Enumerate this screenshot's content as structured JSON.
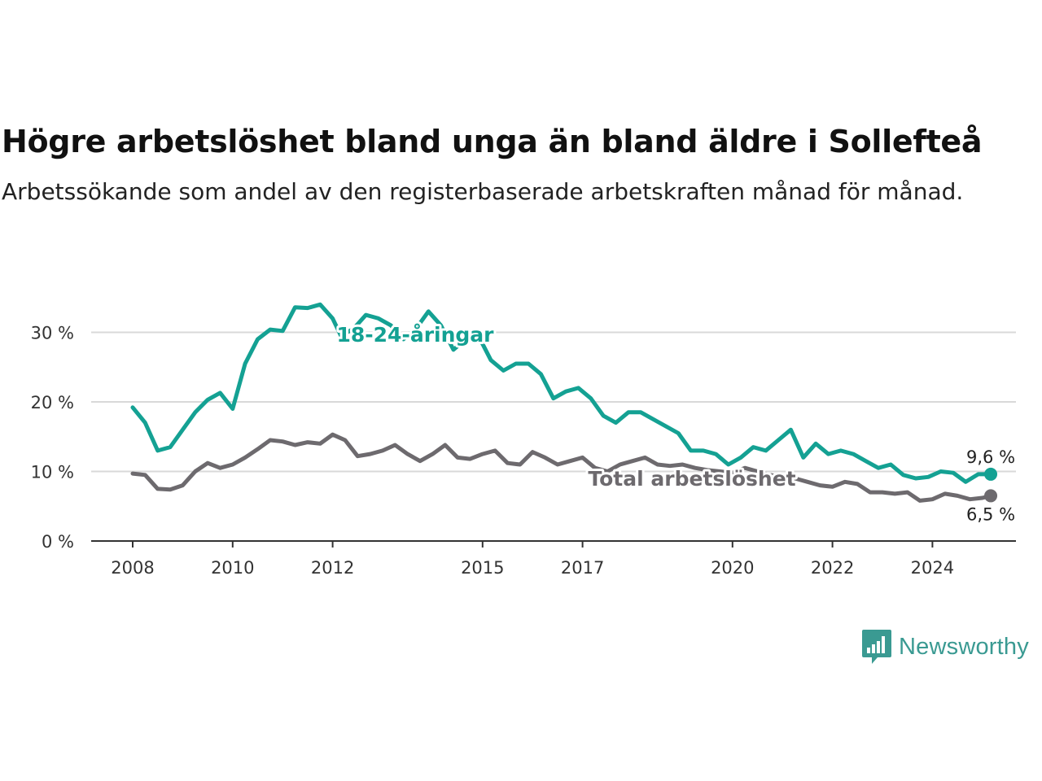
{
  "title": "Högre arbetslöshet bland unga än bland äldre i Sollefteå",
  "subtitle": "Arbetssökande som andel av den registerbaserade arbetskraften månad för månad.",
  "brand": {
    "name": "Newsworthy",
    "icon": "bar-chart-speech-bubble-icon",
    "color": "#3a9a92"
  },
  "chart_data": {
    "type": "line",
    "title": "Högre arbetslöshet bland unga än bland äldre i Sollefteå",
    "subtitle": "Arbetssökande som andel av den registerbaserade arbetskraften månad för månad.",
    "xlabel": "",
    "ylabel": "",
    "x_ticks": [
      "2008",
      "2010",
      "2012",
      "2015",
      "2017",
      "2020",
      "2022",
      "2024"
    ],
    "y_ticks": [
      "0 %",
      "10 %",
      "20 %",
      "30 %"
    ],
    "ylim": [
      0,
      35
    ],
    "grid": "horizontal",
    "legend": "direct labels",
    "series": [
      {
        "name": "18-24-åringar",
        "color": "#14a193",
        "end_label": "9,6 %",
        "points": [
          [
            "2008-01",
            19.2
          ],
          [
            "2008-04",
            17.0
          ],
          [
            "2008-07",
            13.0
          ],
          [
            "2008-10",
            13.5
          ],
          [
            "2009-01",
            16.0
          ],
          [
            "2009-04",
            18.5
          ],
          [
            "2009-07",
            20.3
          ],
          [
            "2009-10",
            21.3
          ],
          [
            "2010-01",
            19.0
          ],
          [
            "2010-04",
            25.5
          ],
          [
            "2010-07",
            29.0
          ],
          [
            "2010-10",
            30.4
          ],
          [
            "2011-01",
            30.2
          ],
          [
            "2011-04",
            33.6
          ],
          [
            "2011-07",
            33.5
          ],
          [
            "2011-10",
            34.0
          ],
          [
            "2012-01",
            32.0
          ],
          [
            "2012-03",
            29.5
          ],
          [
            "2012-06",
            30.5
          ],
          [
            "2012-09",
            32.5
          ],
          [
            "2012-12",
            32.0
          ],
          [
            "2013-03",
            31.0
          ],
          [
            "2013-06",
            29.0
          ],
          [
            "2013-09",
            30.5
          ],
          [
            "2013-12",
            33.0
          ],
          [
            "2014-03",
            31.0
          ],
          [
            "2014-06",
            27.5
          ],
          [
            "2014-09",
            29.0
          ],
          [
            "2014-12",
            29.5
          ],
          [
            "2015-03",
            26.0
          ],
          [
            "2015-06",
            24.5
          ],
          [
            "2015-09",
            25.5
          ],
          [
            "2015-12",
            25.5
          ],
          [
            "2016-03",
            24.0
          ],
          [
            "2016-06",
            20.5
          ],
          [
            "2016-09",
            21.5
          ],
          [
            "2016-12",
            22.0
          ],
          [
            "2017-03",
            20.5
          ],
          [
            "2017-06",
            18.0
          ],
          [
            "2017-09",
            17.0
          ],
          [
            "2017-12",
            18.5
          ],
          [
            "2018-03",
            18.5
          ],
          [
            "2018-06",
            17.5
          ],
          [
            "2018-09",
            16.5
          ],
          [
            "2018-12",
            15.5
          ],
          [
            "2019-03",
            13.0
          ],
          [
            "2019-06",
            13.0
          ],
          [
            "2019-09",
            12.5
          ],
          [
            "2019-12",
            11.0
          ],
          [
            "2020-03",
            12.0
          ],
          [
            "2020-06",
            13.5
          ],
          [
            "2020-09",
            13.0
          ],
          [
            "2020-12",
            14.5
          ],
          [
            "2021-03",
            16.0
          ],
          [
            "2021-06",
            12.0
          ],
          [
            "2021-09",
            14.0
          ],
          [
            "2021-12",
            12.5
          ],
          [
            "2022-03",
            13.0
          ],
          [
            "2022-06",
            12.5
          ],
          [
            "2022-09",
            11.5
          ],
          [
            "2022-12",
            10.5
          ],
          [
            "2023-03",
            11.0
          ],
          [
            "2023-06",
            9.5
          ],
          [
            "2023-09",
            9.0
          ],
          [
            "2023-12",
            9.2
          ],
          [
            "2024-03",
            10.0
          ],
          [
            "2024-06",
            9.8
          ],
          [
            "2024-09",
            8.5
          ],
          [
            "2024-12",
            9.6
          ],
          [
            "2025-03",
            9.6
          ]
        ]
      },
      {
        "name": "Total arbetslöshet",
        "color": "#6d6a6e",
        "end_label": "6,5 %",
        "points": [
          [
            "2008-01",
            9.7
          ],
          [
            "2008-04",
            9.5
          ],
          [
            "2008-07",
            7.5
          ],
          [
            "2008-10",
            7.4
          ],
          [
            "2009-01",
            8.0
          ],
          [
            "2009-04",
            10.0
          ],
          [
            "2009-07",
            11.2
          ],
          [
            "2009-10",
            10.5
          ],
          [
            "2010-01",
            11.0
          ],
          [
            "2010-04",
            12.0
          ],
          [
            "2010-07",
            13.2
          ],
          [
            "2010-10",
            14.5
          ],
          [
            "2011-01",
            14.3
          ],
          [
            "2011-04",
            13.8
          ],
          [
            "2011-07",
            14.2
          ],
          [
            "2011-10",
            14.0
          ],
          [
            "2012-01",
            15.3
          ],
          [
            "2012-04",
            14.5
          ],
          [
            "2012-07",
            12.2
          ],
          [
            "2012-10",
            12.5
          ],
          [
            "2013-01",
            13.0
          ],
          [
            "2013-04",
            13.8
          ],
          [
            "2013-07",
            12.5
          ],
          [
            "2013-10",
            11.5
          ],
          [
            "2014-01",
            12.5
          ],
          [
            "2014-04",
            13.8
          ],
          [
            "2014-07",
            12.0
          ],
          [
            "2014-10",
            11.8
          ],
          [
            "2015-01",
            12.5
          ],
          [
            "2015-04",
            13.0
          ],
          [
            "2015-07",
            11.2
          ],
          [
            "2015-10",
            11.0
          ],
          [
            "2016-01",
            12.8
          ],
          [
            "2016-04",
            12.0
          ],
          [
            "2016-07",
            11.0
          ],
          [
            "2016-10",
            11.5
          ],
          [
            "2017-01",
            12.0
          ],
          [
            "2017-04",
            10.5
          ],
          [
            "2017-07",
            10.0
          ],
          [
            "2017-10",
            11.0
          ],
          [
            "2018-01",
            11.5
          ],
          [
            "2018-04",
            12.0
          ],
          [
            "2018-07",
            11.0
          ],
          [
            "2018-10",
            10.8
          ],
          [
            "2019-01",
            11.0
          ],
          [
            "2019-04",
            10.5
          ],
          [
            "2019-07",
            10.2
          ],
          [
            "2019-10",
            10.0
          ],
          [
            "2020-01",
            9.8
          ],
          [
            "2020-04",
            10.5
          ],
          [
            "2020-07",
            10.0
          ],
          [
            "2020-10",
            9.5
          ],
          [
            "2021-01",
            9.2
          ],
          [
            "2021-04",
            9.0
          ],
          [
            "2021-07",
            8.5
          ],
          [
            "2021-10",
            8.0
          ],
          [
            "2022-01",
            7.8
          ],
          [
            "2022-04",
            8.5
          ],
          [
            "2022-07",
            8.2
          ],
          [
            "2022-10",
            7.0
          ],
          [
            "2023-01",
            7.0
          ],
          [
            "2023-04",
            6.8
          ],
          [
            "2023-07",
            7.0
          ],
          [
            "2023-10",
            5.8
          ],
          [
            "2024-01",
            6.0
          ],
          [
            "2024-04",
            6.8
          ],
          [
            "2024-07",
            6.5
          ],
          [
            "2024-10",
            6.0
          ],
          [
            "2025-01",
            6.2
          ],
          [
            "2025-03",
            6.5
          ]
        ]
      }
    ]
  }
}
